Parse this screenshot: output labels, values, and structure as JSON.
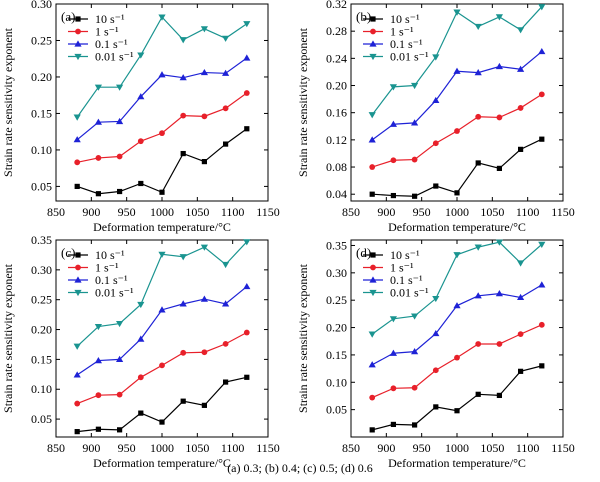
{
  "caption": "(a) 0.3; (b) 0.4; (c) 0.5; (d) 0.6",
  "colors": {
    "10": "#000000",
    "1": "#e8202a",
    "0.1": "#1e22d6",
    "0.01": "#1a9490"
  },
  "chart_data": [
    {
      "type": "line",
      "panel_label": "(a)",
      "xlabel": "Deformation temperature/°C",
      "ylabel": "Strain rate sensitivity exponent",
      "x": [
        880,
        910,
        940,
        970,
        1000,
        1030,
        1060,
        1090,
        1120
      ],
      "xlim": [
        850,
        1150
      ],
      "xticks": [
        850,
        900,
        950,
        1000,
        1050,
        1100,
        1150
      ],
      "ylim": [
        0.03,
        0.3
      ],
      "yticks": [
        "0.05",
        "0.10",
        "0.15",
        "0.20",
        "0.25",
        "0.30"
      ],
      "legend_position": "upper-left",
      "series": [
        {
          "name": "10 s⁻¹",
          "marker": "square",
          "values": [
            0.05,
            0.04,
            0.043,
            0.054,
            0.042,
            0.095,
            0.084,
            0.108,
            0.129
          ]
        },
        {
          "name": "1 s⁻¹",
          "marker": "circle",
          "values": [
            0.083,
            0.089,
            0.091,
            0.112,
            0.123,
            0.147,
            0.146,
            0.157,
            0.178
          ]
        },
        {
          "name": "0.1 s⁻¹",
          "marker": "triangle-up",
          "values": [
            0.114,
            0.138,
            0.139,
            0.173,
            0.203,
            0.199,
            0.206,
            0.205,
            0.226
          ]
        },
        {
          "name": "0.01 s⁻¹",
          "marker": "triangle-down",
          "values": [
            0.145,
            0.186,
            0.186,
            0.23,
            0.282,
            0.251,
            0.266,
            0.253,
            0.273
          ]
        }
      ]
    },
    {
      "type": "line",
      "panel_label": "(b)",
      "xlabel": "Deformation temperature/°C",
      "ylabel": "Strain rate sensitivity exponent",
      "x": [
        880,
        910,
        940,
        970,
        1000,
        1030,
        1060,
        1090,
        1120
      ],
      "xlim": [
        850,
        1150
      ],
      "xticks": [
        850,
        900,
        950,
        1000,
        1050,
        1100,
        1150
      ],
      "ylim": [
        0.03,
        0.32
      ],
      "yticks": [
        "0.04",
        "0.08",
        "0.12",
        "0.16",
        "0.20",
        "0.24",
        "0.28",
        "0.32"
      ],
      "legend_position": "upper-left",
      "series": [
        {
          "name": "10 s⁻¹",
          "marker": "square",
          "values": [
            0.04,
            0.038,
            0.037,
            0.052,
            0.042,
            0.086,
            0.078,
            0.106,
            0.121
          ]
        },
        {
          "name": "1 s⁻¹",
          "marker": "circle",
          "values": [
            0.08,
            0.09,
            0.091,
            0.115,
            0.133,
            0.154,
            0.153,
            0.167,
            0.187
          ]
        },
        {
          "name": "0.1 s⁻¹",
          "marker": "triangle-up",
          "values": [
            0.12,
            0.143,
            0.145,
            0.178,
            0.221,
            0.219,
            0.228,
            0.224,
            0.25
          ]
        },
        {
          "name": "0.01 s⁻¹",
          "marker": "triangle-down",
          "values": [
            0.157,
            0.198,
            0.2,
            0.242,
            0.308,
            0.287,
            0.301,
            0.282,
            0.316
          ]
        }
      ]
    },
    {
      "type": "line",
      "panel_label": "(c)",
      "xlabel": "Deformation temperature/°C",
      "ylabel": "Strain rate sensitivity exponent",
      "x": [
        880,
        910,
        940,
        970,
        1000,
        1030,
        1060,
        1090,
        1120
      ],
      "xlim": [
        850,
        1150
      ],
      "xticks": [
        850,
        900,
        950,
        1000,
        1050,
        1100,
        1150
      ],
      "ylim": [
        0.02,
        0.35
      ],
      "yticks": [
        "0.05",
        "0.10",
        "0.15",
        "0.20",
        "0.25",
        "0.30",
        "0.35"
      ],
      "legend_position": "upper-left",
      "series": [
        {
          "name": "10 s⁻¹",
          "marker": "square",
          "values": [
            0.029,
            0.033,
            0.032,
            0.06,
            0.045,
            0.08,
            0.073,
            0.112,
            0.12
          ]
        },
        {
          "name": "1 s⁻¹",
          "marker": "circle",
          "values": [
            0.076,
            0.09,
            0.091,
            0.12,
            0.14,
            0.161,
            0.162,
            0.176,
            0.195
          ]
        },
        {
          "name": "0.1 s⁻¹",
          "marker": "triangle-up",
          "values": [
            0.124,
            0.148,
            0.15,
            0.184,
            0.233,
            0.243,
            0.251,
            0.243,
            0.272
          ]
        },
        {
          "name": "0.01 s⁻¹",
          "marker": "triangle-down",
          "values": [
            0.172,
            0.205,
            0.21,
            0.242,
            0.326,
            0.322,
            0.338,
            0.309,
            0.347
          ]
        }
      ]
    },
    {
      "type": "line",
      "panel_label": "(d)",
      "xlabel": "Deformation temperature/°C",
      "ylabel": "Strain rate sensitivity exponent",
      "x": [
        880,
        910,
        940,
        970,
        1000,
        1030,
        1060,
        1090,
        1120
      ],
      "xlim": [
        850,
        1150
      ],
      "xticks": [
        850,
        900,
        950,
        1000,
        1050,
        1100,
        1150
      ],
      "ylim": [
        0.0,
        0.36
      ],
      "yticks": [
        "0.05",
        "0.10",
        "0.15",
        "0.20",
        "0.25",
        "0.30",
        "0.35"
      ],
      "legend_position": "upper-left",
      "series": [
        {
          "name": "10 s⁻¹",
          "marker": "square",
          "values": [
            0.013,
            0.023,
            0.022,
            0.055,
            0.048,
            0.078,
            0.076,
            0.12,
            0.13
          ]
        },
        {
          "name": "1 s⁻¹",
          "marker": "circle",
          "values": [
            0.072,
            0.089,
            0.09,
            0.122,
            0.145,
            0.17,
            0.17,
            0.188,
            0.205
          ]
        },
        {
          "name": "0.1 s⁻¹",
          "marker": "triangle-up",
          "values": [
            0.132,
            0.153,
            0.156,
            0.189,
            0.24,
            0.258,
            0.262,
            0.255,
            0.278
          ]
        },
        {
          "name": "0.01 s⁻¹",
          "marker": "triangle-down",
          "values": [
            0.188,
            0.216,
            0.221,
            0.253,
            0.333,
            0.347,
            0.356,
            0.318,
            0.352
          ]
        }
      ]
    }
  ]
}
